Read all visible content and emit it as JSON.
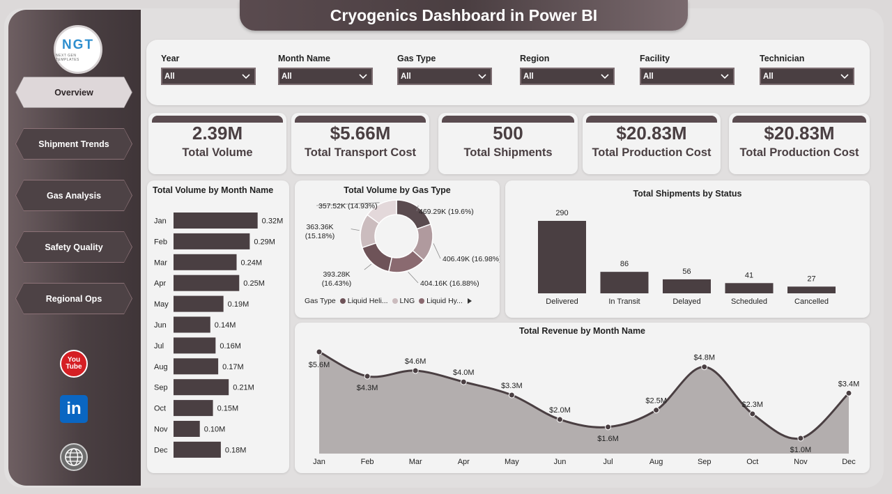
{
  "title": "Cryogenics Dashboard in Power BI",
  "logo": {
    "main": "NGT",
    "sub": "NEXT GEN TEMPLATES"
  },
  "nav": [
    {
      "label": "Overview",
      "active": true
    },
    {
      "label": "Shipment Trends"
    },
    {
      "label": "Gas Analysis"
    },
    {
      "label": "Safety Quality"
    },
    {
      "label": "Regional Ops"
    }
  ],
  "social": {
    "youtube_line1": "You",
    "youtube_line2": "Tube",
    "linkedin": "in"
  },
  "filters": [
    {
      "label": "Year",
      "value": "All"
    },
    {
      "label": "Month Name",
      "value": "All"
    },
    {
      "label": "Gas Type",
      "value": "All"
    },
    {
      "label": "Region",
      "value": "All"
    },
    {
      "label": "Facility",
      "value": "All"
    },
    {
      "label": "Technician",
      "value": "All"
    }
  ],
  "kpis": [
    {
      "value": "2.39M",
      "label": "Total Volume"
    },
    {
      "value": "$5.66M",
      "label": "Total Transport Cost"
    },
    {
      "value": "500",
      "label": "Total Shipments"
    },
    {
      "value": "$20.83M",
      "label": "Total Production Cost"
    },
    {
      "value": "$20.83M",
      "label": "Total Production Cost"
    }
  ],
  "colors": {
    "dark": "#4a3f42",
    "accent": "#5a4b4f",
    "card": "#f3f3f3",
    "area": "#b3aeae"
  },
  "chart_data": [
    {
      "type": "bar",
      "orientation": "horizontal",
      "title": "Total Volume by Month Name",
      "categories": [
        "Jan",
        "Feb",
        "Mar",
        "Apr",
        "May",
        "Jun",
        "Jul",
        "Aug",
        "Sep",
        "Oct",
        "Nov",
        "Dec"
      ],
      "values": [
        0.32,
        0.29,
        0.24,
        0.25,
        0.19,
        0.14,
        0.16,
        0.17,
        0.21,
        0.15,
        0.1,
        0.18
      ],
      "labels": [
        "0.32M",
        "0.29M",
        "0.24M",
        "0.25M",
        "0.19M",
        "0.14M",
        "0.16M",
        "0.17M",
        "0.21M",
        "0.15M",
        "0.10M",
        "0.18M"
      ]
    },
    {
      "type": "pie",
      "title": "Total Volume by Gas Type",
      "legend_title": "Gas Type",
      "legend": [
        "Liquid Heli...",
        "LNG",
        "Liquid Hy..."
      ],
      "values": [
        469.29,
        406.49,
        404.16,
        393.28,
        363.36,
        357.52
      ],
      "labels": [
        "469.29K (19.6%)",
        "406.49K (16.98%)",
        "404.16K (16.88%)",
        "393.28K (16.43%)",
        "363.36K (15.18%)",
        "357.52K (14.93%)"
      ],
      "colors": [
        "#5a4b4f",
        "#b09a9e",
        "#8a6a70",
        "#6e5358",
        "#cbbcbe",
        "#e3d8da"
      ]
    },
    {
      "type": "bar",
      "title": "Total Shipments by Status",
      "categories": [
        "Delivered",
        "In Transit",
        "Delayed",
        "Scheduled",
        "Cancelled"
      ],
      "values": [
        290,
        86,
        56,
        41,
        27
      ]
    },
    {
      "type": "area",
      "title": "Total Revenue by Month Name",
      "categories": [
        "Jan",
        "Feb",
        "Mar",
        "Apr",
        "May",
        "Jun",
        "Jul",
        "Aug",
        "Sep",
        "Oct",
        "Nov",
        "Dec"
      ],
      "values": [
        5.6,
        4.3,
        4.6,
        4.0,
        3.3,
        2.0,
        1.6,
        2.5,
        4.8,
        2.3,
        1.0,
        3.4
      ],
      "labels": [
        "$5.6M",
        "$4.3M",
        "$4.6M",
        "$4.0M",
        "$3.3M",
        "$2.0M",
        "$1.6M",
        "$2.5M",
        "$4.8M",
        "$2.3M",
        "$1.0M",
        "$3.4M"
      ]
    }
  ]
}
